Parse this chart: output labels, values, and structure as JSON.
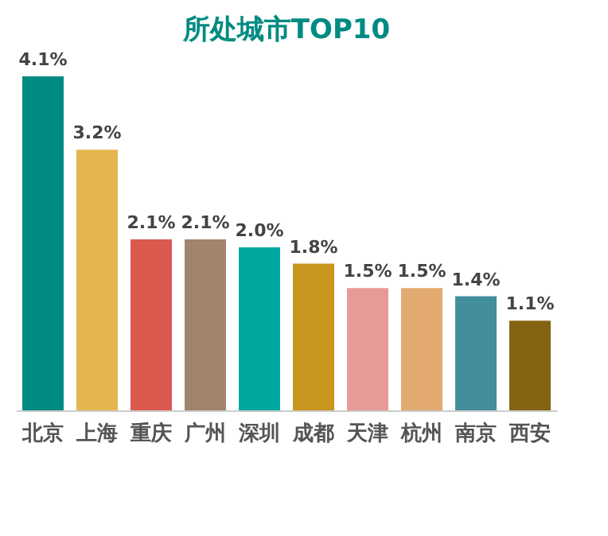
{
  "chart_data": {
    "type": "bar",
    "title": "所处城市TOP10",
    "categories": [
      "北京",
      "上海",
      "重庆",
      "广州",
      "深圳",
      "成都",
      "天津",
      "杭州",
      "南京",
      "西安"
    ],
    "values": [
      4.1,
      3.2,
      2.1,
      2.1,
      2.0,
      1.8,
      1.5,
      1.5,
      1.4,
      1.1
    ],
    "value_labels": [
      "4.1%",
      "3.2%",
      "2.1%",
      "2.1%",
      "2.0%",
      "1.8%",
      "1.5%",
      "1.5%",
      "1.4%",
      "1.1%"
    ],
    "colors": [
      "#008b82",
      "#e3b74d",
      "#db5a50",
      "#a0846b",
      "#00a8a0",
      "#c8961e",
      "#e89a96",
      "#e2aa70",
      "#438e9c",
      "#846313"
    ],
    "grid": false
  }
}
